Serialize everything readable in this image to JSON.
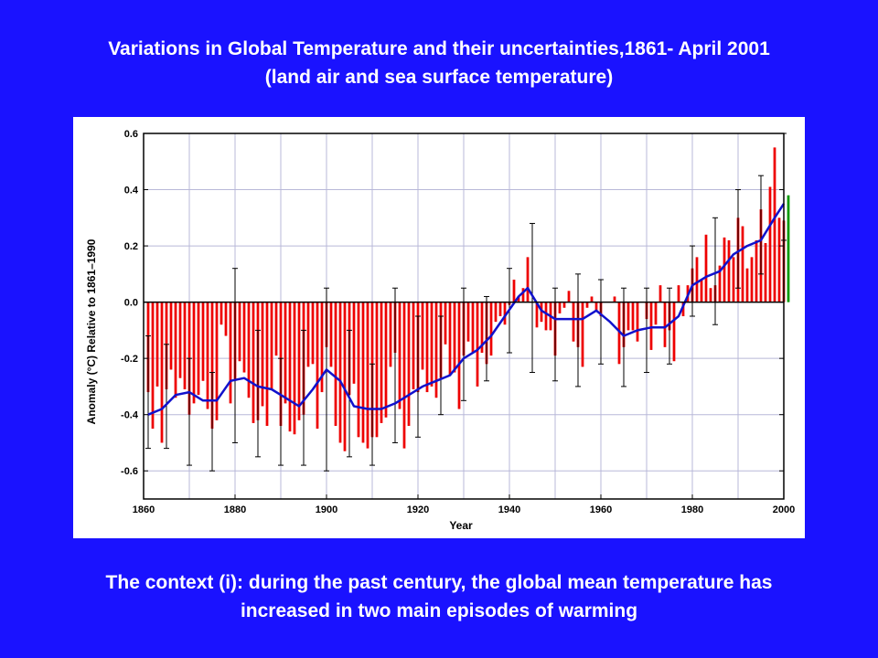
{
  "slide": {
    "title_line1": "Variations in Global Temperature and their uncertainties,1861- April 2001",
    "title_line2": "(land air and sea surface temperature)",
    "footer_line1": "The context (i): during the past century, the global mean temperature has",
    "footer_line2": "increased in two main episodes of warming",
    "background_color": "#1a12ff",
    "text_color": "#ffffff"
  },
  "chart_data": {
    "type": "bar",
    "title": "",
    "xlabel": "Year",
    "ylabel": "Anomaly (°C) Relative to 1861–1990",
    "xlim": [
      1860,
      2002
    ],
    "ylim": [
      -0.7,
      0.6
    ],
    "x_ticks": [
      1860,
      1880,
      1900,
      1920,
      1940,
      1960,
      1980,
      2000
    ],
    "x_tick_labels": [
      "1860",
      "1880",
      "1900",
      "1920",
      "1940",
      "1960",
      "1980",
      "2000"
    ],
    "y_ticks": [
      -0.6,
      -0.4,
      -0.2,
      0.0,
      0.2,
      0.4,
      0.6
    ],
    "y_tick_labels": [
      "-0.6",
      "-0.4",
      "-0.2",
      "0.0",
      "0.2",
      "0.4",
      "0.6"
    ],
    "grid": true,
    "colors": {
      "bar_negative": "#ee0000",
      "bar_positive": "#ee0000",
      "bar_partial_year": "#009900",
      "smooth": "#1111cc",
      "error_bar": "#000000",
      "grid": "#b8b8d8"
    },
    "partial_year": 2001,
    "annual_anomaly": {
      "years": [
        1861,
        1862,
        1863,
        1864,
        1865,
        1866,
        1867,
        1868,
        1869,
        1870,
        1871,
        1872,
        1873,
        1874,
        1875,
        1876,
        1877,
        1878,
        1879,
        1880,
        1881,
        1882,
        1883,
        1884,
        1885,
        1886,
        1887,
        1888,
        1889,
        1890,
        1891,
        1892,
        1893,
        1894,
        1895,
        1896,
        1897,
        1898,
        1899,
        1900,
        1901,
        1902,
        1903,
        1904,
        1905,
        1906,
        1907,
        1908,
        1909,
        1910,
        1911,
        1912,
        1913,
        1914,
        1915,
        1916,
        1917,
        1918,
        1919,
        1920,
        1921,
        1922,
        1923,
        1924,
        1925,
        1926,
        1927,
        1928,
        1929,
        1930,
        1931,
        1932,
        1933,
        1934,
        1935,
        1936,
        1937,
        1938,
        1939,
        1940,
        1941,
        1942,
        1943,
        1944,
        1945,
        1946,
        1947,
        1948,
        1949,
        1950,
        1951,
        1952,
        1953,
        1954,
        1955,
        1956,
        1957,
        1958,
        1959,
        1960,
        1961,
        1962,
        1963,
        1964,
        1965,
        1966,
        1967,
        1968,
        1969,
        1970,
        1971,
        1972,
        1973,
        1974,
        1975,
        1976,
        1977,
        1978,
        1979,
        1980,
        1981,
        1982,
        1983,
        1984,
        1985,
        1986,
        1987,
        1988,
        1989,
        1990,
        1991,
        1992,
        1993,
        1994,
        1995,
        1996,
        1997,
        1998,
        1999,
        2000,
        2001
      ],
      "values": [
        -0.32,
        -0.45,
        -0.3,
        -0.5,
        -0.31,
        -0.24,
        -0.34,
        -0.27,
        -0.31,
        -0.4,
        -0.36,
        -0.33,
        -0.28,
        -0.38,
        -0.45,
        -0.42,
        -0.08,
        -0.12,
        -0.36,
        -0.28,
        -0.21,
        -0.25,
        -0.34,
        -0.43,
        -0.42,
        -0.37,
        -0.44,
        -0.31,
        -0.19,
        -0.44,
        -0.36,
        -0.46,
        -0.47,
        -0.42,
        -0.4,
        -0.23,
        -0.22,
        -0.45,
        -0.32,
        -0.16,
        -0.23,
        -0.44,
        -0.5,
        -0.53,
        -0.33,
        -0.29,
        -0.48,
        -0.5,
        -0.52,
        -0.48,
        -0.48,
        -0.43,
        -0.41,
        -0.23,
        -0.18,
        -0.38,
        -0.52,
        -0.44,
        -0.31,
        -0.32,
        -0.24,
        -0.32,
        -0.3,
        -0.34,
        -0.27,
        -0.15,
        -0.26,
        -0.25,
        -0.38,
        -0.19,
        -0.14,
        -0.18,
        -0.3,
        -0.18,
        -0.22,
        -0.19,
        -0.07,
        -0.05,
        -0.08,
        -0.01,
        0.08,
        0.02,
        0.05,
        0.16,
        0.0,
        -0.09,
        -0.07,
        -0.1,
        -0.1,
        -0.19,
        -0.04,
        -0.02,
        0.04,
        -0.14,
        -0.16,
        -0.23,
        -0.02,
        0.02,
        -0.03,
        -0.05,
        0.0,
        0.0,
        0.02,
        -0.22,
        -0.16,
        -0.1,
        -0.1,
        -0.14,
        0.0,
        -0.06,
        -0.17,
        -0.08,
        0.06,
        -0.16,
        -0.1,
        -0.21,
        0.06,
        -0.05,
        0.06,
        0.12,
        0.16,
        0.08,
        0.24,
        0.05,
        0.06,
        0.13,
        0.23,
        0.22,
        0.16,
        0.3,
        0.27,
        0.12,
        0.16,
        0.22,
        0.33,
        0.21,
        0.41,
        0.55,
        0.3,
        0.29,
        0.38
      ]
    },
    "uncertainty": {
      "years": [
        1861,
        1865,
        1870,
        1875,
        1880,
        1885,
        1890,
        1895,
        1900,
        1905,
        1910,
        1915,
        1920,
        1925,
        1930,
        1935,
        1940,
        1945,
        1950,
        1955,
        1960,
        1965,
        1970,
        1975,
        1980,
        1985,
        1990,
        1995,
        2000
      ],
      "low": [
        -0.52,
        -0.52,
        -0.58,
        -0.6,
        -0.5,
        -0.55,
        -0.58,
        -0.58,
        -0.6,
        -0.55,
        -0.58,
        -0.5,
        -0.48,
        -0.4,
        -0.35,
        -0.28,
        -0.18,
        -0.25,
        -0.28,
        -0.3,
        -0.22,
        -0.3,
        -0.25,
        -0.22,
        -0.05,
        -0.08,
        0.05,
        0.1,
        0.22
      ],
      "high": [
        -0.12,
        -0.15,
        -0.2,
        -0.25,
        0.12,
        -0.1,
        -0.2,
        -0.1,
        0.05,
        -0.1,
        -0.22,
        0.05,
        -0.05,
        -0.05,
        0.05,
        0.02,
        0.12,
        0.28,
        0.05,
        0.1,
        0.08,
        0.05,
        0.05,
        0.05,
        0.2,
        0.3,
        0.4,
        0.45,
        0.6
      ]
    },
    "smoothed": {
      "years": [
        1861,
        1864,
        1867,
        1870,
        1873,
        1876,
        1879,
        1882,
        1885,
        1888,
        1891,
        1894,
        1897,
        1900,
        1903,
        1906,
        1909,
        1912,
        1915,
        1918,
        1921,
        1924,
        1927,
        1930,
        1933,
        1936,
        1939,
        1942,
        1944,
        1947,
        1950,
        1953,
        1956,
        1959,
        1962,
        1965,
        1968,
        1971,
        1974,
        1977,
        1980,
        1983,
        1986,
        1989,
        1992,
        1995,
        1998,
        2000
      ],
      "values": [
        -0.4,
        -0.38,
        -0.33,
        -0.32,
        -0.35,
        -0.35,
        -0.28,
        -0.27,
        -0.3,
        -0.31,
        -0.34,
        -0.37,
        -0.31,
        -0.24,
        -0.28,
        -0.37,
        -0.38,
        -0.38,
        -0.36,
        -0.33,
        -0.3,
        -0.28,
        -0.26,
        -0.2,
        -0.17,
        -0.12,
        -0.05,
        0.02,
        0.05,
        -0.03,
        -0.06,
        -0.06,
        -0.06,
        -0.03,
        -0.07,
        -0.12,
        -0.1,
        -0.09,
        -0.09,
        -0.05,
        0.06,
        0.09,
        0.11,
        0.17,
        0.2,
        0.22,
        0.3,
        0.35
      ]
    }
  }
}
